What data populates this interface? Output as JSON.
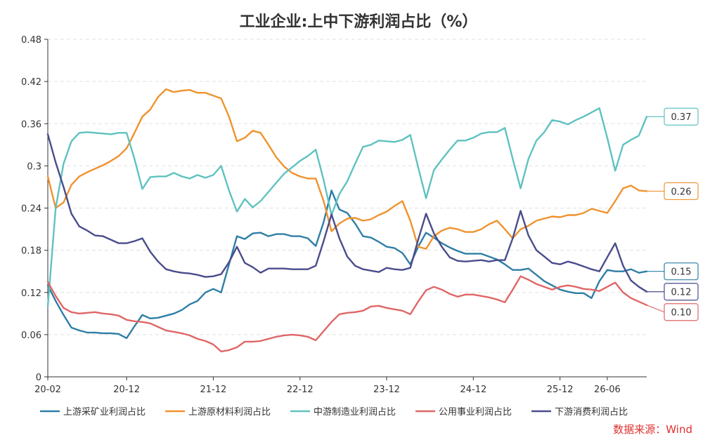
{
  "chart_data": {
    "type": "line",
    "title": "工业企业:上中下游利润占比（%）",
    "source": "数据来源：Wind",
    "ylim": [
      0,
      0.48
    ],
    "yticks": [
      "0",
      "0.06",
      "0.12",
      "0.18",
      "0.24",
      "0.3",
      "0.36",
      "0.42",
      "0.48"
    ],
    "ytick_values": [
      0,
      0.06,
      0.12,
      0.18,
      0.24,
      0.3,
      0.36,
      0.42,
      0.48
    ],
    "xticks": [
      "20-02",
      "20-12",
      "21-12",
      "22-12",
      "23-12",
      "24-12",
      "25-12",
      "26-06"
    ],
    "xtick_indices": [
      0,
      10,
      21,
      32,
      43,
      54,
      65,
      71
    ],
    "x_start": "20-02",
    "x_end": "26-06",
    "grid": true,
    "legend_position": "bottom",
    "series": [
      {
        "name": "上游采矿业利润占比",
        "color": "#2e7ea6",
        "end_label": "0.15",
        "values": [
          0.13,
          0.108,
          0.088,
          0.07,
          0.066,
          0.063,
          0.063,
          0.062,
          0.062,
          0.061,
          0.055,
          0.072,
          0.088,
          0.083,
          0.084,
          0.087,
          0.09,
          0.095,
          0.103,
          0.108,
          0.12,
          0.125,
          0.12,
          0.16,
          0.2,
          0.196,
          0.204,
          0.205,
          0.2,
          0.203,
          0.203,
          0.2,
          0.2,
          0.197,
          0.186,
          0.22,
          0.265,
          0.238,
          0.233,
          0.218,
          0.2,
          0.198,
          0.192,
          0.185,
          0.183,
          0.176,
          0.16,
          0.185,
          0.205,
          0.198,
          0.19,
          0.184,
          0.179,
          0.175,
          0.175,
          0.175,
          0.171,
          0.167,
          0.16,
          0.152,
          0.152,
          0.154,
          0.145,
          0.136,
          0.13,
          0.124,
          0.121,
          0.119,
          0.119,
          0.112,
          0.136,
          0.152,
          0.15,
          0.15,
          0.153,
          0.148,
          0.15
        ]
      },
      {
        "name": "上游原材料利润占比",
        "color": "#f0922e",
        "end_label": "0.26",
        "values": [
          0.285,
          0.24,
          0.248,
          0.273,
          0.285,
          0.291,
          0.296,
          0.301,
          0.307,
          0.314,
          0.325,
          0.347,
          0.37,
          0.38,
          0.398,
          0.409,
          0.405,
          0.407,
          0.408,
          0.404,
          0.404,
          0.4,
          0.396,
          0.37,
          0.335,
          0.34,
          0.35,
          0.347,
          0.33,
          0.312,
          0.299,
          0.29,
          0.285,
          0.282,
          0.282,
          0.25,
          0.207,
          0.218,
          0.225,
          0.226,
          0.222,
          0.224,
          0.23,
          0.235,
          0.243,
          0.25,
          0.222,
          0.185,
          0.182,
          0.2,
          0.208,
          0.212,
          0.21,
          0.206,
          0.206,
          0.21,
          0.217,
          0.222,
          0.21,
          0.197,
          0.21,
          0.215,
          0.222,
          0.225,
          0.228,
          0.227,
          0.23,
          0.23,
          0.233,
          0.239,
          0.236,
          0.233,
          0.25,
          0.268,
          0.272,
          0.265,
          0.264
        ]
      },
      {
        "name": "中游制造业利润占比",
        "color": "#5fc2c0",
        "end_label": "0.37",
        "values": [
          0.1,
          0.24,
          0.303,
          0.335,
          0.347,
          0.348,
          0.347,
          0.346,
          0.345,
          0.347,
          0.347,
          0.31,
          0.267,
          0.284,
          0.285,
          0.285,
          0.29,
          0.285,
          0.282,
          0.287,
          0.283,
          0.287,
          0.3,
          0.265,
          0.235,
          0.253,
          0.241,
          0.25,
          0.263,
          0.276,
          0.289,
          0.298,
          0.307,
          0.314,
          0.323,
          0.28,
          0.23,
          0.26,
          0.278,
          0.303,
          0.327,
          0.33,
          0.336,
          0.335,
          0.334,
          0.337,
          0.344,
          0.298,
          0.254,
          0.294,
          0.309,
          0.323,
          0.336,
          0.336,
          0.34,
          0.346,
          0.348,
          0.348,
          0.354,
          0.31,
          0.268,
          0.31,
          0.336,
          0.348,
          0.365,
          0.363,
          0.359,
          0.365,
          0.37,
          0.376,
          0.382,
          0.34,
          0.293,
          0.33,
          0.337,
          0.343,
          0.37
        ]
      },
      {
        "name": "公用事业利润占比",
        "color": "#e06666",
        "end_label": "0.10",
        "values": [
          0.135,
          0.115,
          0.098,
          0.092,
          0.09,
          0.091,
          0.092,
          0.09,
          0.089,
          0.087,
          0.081,
          0.079,
          0.078,
          0.076,
          0.071,
          0.066,
          0.064,
          0.062,
          0.059,
          0.054,
          0.051,
          0.046,
          0.036,
          0.038,
          0.042,
          0.05,
          0.05,
          0.051,
          0.054,
          0.057,
          0.059,
          0.06,
          0.059,
          0.057,
          0.052,
          0.065,
          0.078,
          0.089,
          0.091,
          0.092,
          0.094,
          0.1,
          0.101,
          0.098,
          0.096,
          0.094,
          0.089,
          0.107,
          0.123,
          0.128,
          0.124,
          0.118,
          0.114,
          0.117,
          0.117,
          0.115,
          0.113,
          0.11,
          0.106,
          0.124,
          0.143,
          0.138,
          0.132,
          0.128,
          0.124,
          0.128,
          0.13,
          0.128,
          0.125,
          0.124,
          0.122,
          0.128,
          0.134,
          0.12,
          0.112,
          0.107,
          0.102
        ]
      },
      {
        "name": "下游消费利润占比",
        "color": "#4a4c8c",
        "end_label": "0.12",
        "values": [
          0.345,
          0.305,
          0.27,
          0.232,
          0.214,
          0.208,
          0.201,
          0.2,
          0.195,
          0.19,
          0.19,
          0.193,
          0.197,
          0.178,
          0.164,
          0.153,
          0.15,
          0.148,
          0.147,
          0.145,
          0.142,
          0.143,
          0.146,
          0.163,
          0.185,
          0.162,
          0.156,
          0.148,
          0.154,
          0.154,
          0.154,
          0.153,
          0.153,
          0.153,
          0.158,
          0.193,
          0.231,
          0.197,
          0.171,
          0.158,
          0.153,
          0.151,
          0.149,
          0.155,
          0.153,
          0.152,
          0.155,
          0.195,
          0.232,
          0.204,
          0.185,
          0.17,
          0.165,
          0.164,
          0.165,
          0.166,
          0.164,
          0.166,
          0.166,
          0.197,
          0.236,
          0.201,
          0.18,
          0.171,
          0.162,
          0.16,
          0.164,
          0.161,
          0.157,
          0.153,
          0.15,
          0.17,
          0.19,
          0.158,
          0.137,
          0.128,
          0.121
        ]
      }
    ]
  }
}
